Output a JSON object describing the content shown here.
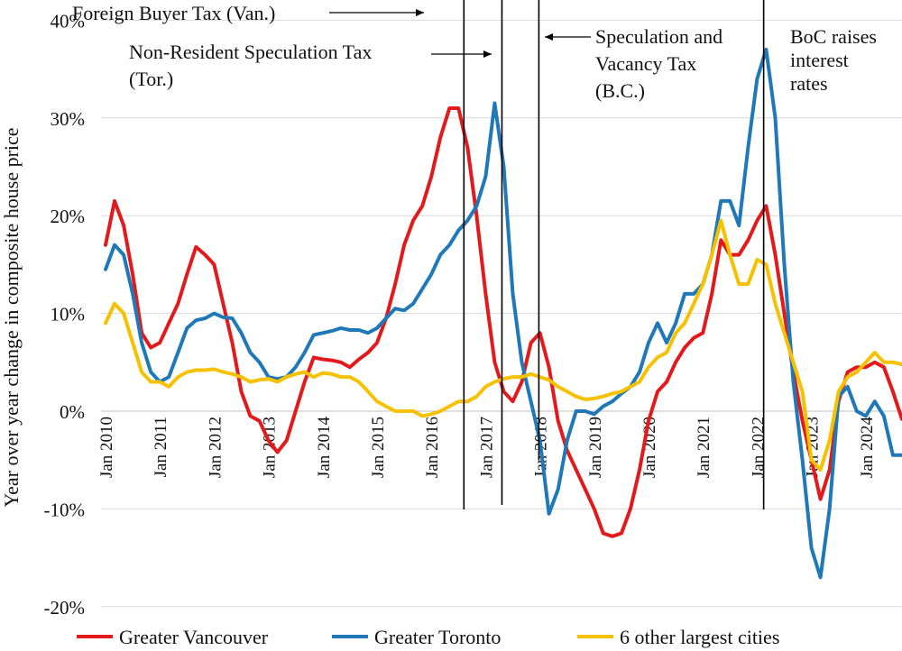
{
  "chart_data": {
    "type": "line",
    "ylabel": "Year over year change in composite house price",
    "ylim": [
      -20,
      40
    ],
    "yticks": [
      -20,
      -10,
      0,
      10,
      20,
      30,
      40
    ],
    "ytick_labels": [
      "-20%",
      "-10%",
      "0%",
      "10%",
      "20%",
      "30%",
      "40%"
    ],
    "x_start_year": 2010,
    "x_step_months": 2,
    "xtick_years": [
      2010,
      2011,
      2012,
      2013,
      2014,
      2015,
      2016,
      2017,
      2018,
      2019,
      2020,
      2021,
      2022,
      2023,
      2024
    ],
    "xtick_labels": [
      "Jan 2010",
      "Jan 2011",
      "Jan 2012",
      "Jan 2013",
      "Jan 2014",
      "Jan 2015",
      "Jan 2016",
      "Jan 2017",
      "Jan 2018",
      "Jan 2019",
      "Jan 2020",
      "Jan 2021",
      "Jan 2022",
      "Jan 2023",
      "Jan 2024"
    ],
    "grid": true,
    "legend_position": "bottom",
    "series": [
      {
        "name": "Greater Vancouver",
        "color": "#e31a1c",
        "values": [
          17,
          21.5,
          19,
          14,
          8,
          6.5,
          7,
          9,
          11,
          14,
          16.8,
          16,
          15,
          11,
          7,
          2,
          -0.5,
          -1,
          -3,
          -4.2,
          -3,
          0,
          3,
          5.5,
          5.3,
          5.2,
          5,
          4.5,
          5.3,
          6,
          7,
          9.5,
          13,
          17,
          19.5,
          21,
          24,
          28,
          31,
          31,
          27,
          20,
          12,
          5,
          2,
          1,
          3,
          7,
          8,
          4.5,
          -1,
          -4,
          -6,
          -8,
          -10,
          -12.5,
          -12.8,
          -12.5,
          -10,
          -6,
          -1,
          2,
          3,
          5,
          6.5,
          7.5,
          8,
          12,
          17.5,
          16,
          16,
          17.5,
          19.5,
          21,
          16,
          10,
          4,
          -1,
          -5,
          -9,
          -6,
          1,
          4,
          4.5,
          4.5,
          5,
          4.5,
          2,
          -0.8
        ]
      },
      {
        "name": "Greater Toronto",
        "color": "#1f78b8",
        "values": [
          14.5,
          17,
          16,
          12,
          7,
          4,
          3,
          3.5,
          6,
          8.5,
          9.3,
          9.5,
          10,
          9.6,
          9.5,
          8,
          6,
          5,
          3.5,
          3.3,
          3.5,
          4.5,
          6,
          7.8,
          8,
          8.2,
          8.5,
          8.3,
          8.3,
          8,
          8.5,
          9.5,
          10.5,
          10.3,
          11,
          12.5,
          14,
          16,
          17,
          18.5,
          19.5,
          21,
          24,
          31.5,
          25,
          12,
          5,
          1,
          -3,
          -10.5,
          -8,
          -3,
          0,
          0,
          -0.3,
          0.5,
          1,
          1.8,
          2.5,
          4,
          7,
          9,
          7,
          9,
          12,
          12,
          13,
          16,
          21.5,
          21.5,
          19,
          27,
          34,
          37,
          30,
          15,
          3,
          -5,
          -14,
          -17,
          -10,
          1.5,
          2.5,
          0,
          -0.5,
          1,
          -0.5,
          -4.5,
          -4.5
        ]
      },
      {
        "name": "6 other largest cities",
        "color": "#f6c100",
        "values": [
          9,
          11,
          10,
          7,
          4,
          3,
          3,
          2.5,
          3.5,
          4,
          4.2,
          4.2,
          4.3,
          4,
          3.8,
          3.5,
          3,
          3.2,
          3.3,
          3,
          3.5,
          3.8,
          4,
          3.5,
          3.9,
          3.8,
          3.5,
          3.5,
          3,
          2,
          1,
          0.5,
          0,
          0,
          0,
          -0.5,
          -0.3,
          0,
          0.5,
          1,
          1,
          1.5,
          2.5,
          3,
          3.3,
          3.5,
          3.5,
          3.8,
          3.5,
          3.2,
          2.5,
          2,
          1.5,
          1.2,
          1.3,
          1.5,
          1.8,
          2,
          2.5,
          3,
          4.5,
          5.5,
          6,
          8,
          9,
          11,
          13,
          16,
          19.5,
          16,
          13,
          13,
          15.5,
          15,
          11,
          8,
          5,
          2,
          -5,
          -6,
          -3,
          2,
          3.5,
          4,
          5,
          6,
          5,
          5,
          4.8
        ]
      }
    ],
    "events": [
      {
        "year": 2016.6,
        "label_lines": [
          "Foreign Buyer Tax (Van.)"
        ],
        "arrow": "right"
      },
      {
        "year": 2017.3,
        "label_lines": [
          "Non-Resident Speculation Tax",
          "(Tor.)"
        ],
        "arrow": "right"
      },
      {
        "year": 2017.98,
        "label_lines": [
          "Speculation and",
          "Vacancy Tax",
          "(B.C.)"
        ],
        "arrow": "left"
      },
      {
        "year": 2022.12,
        "label_lines": [
          "BoC raises",
          "interest",
          "rates"
        ],
        "arrow": "none"
      }
    ]
  }
}
